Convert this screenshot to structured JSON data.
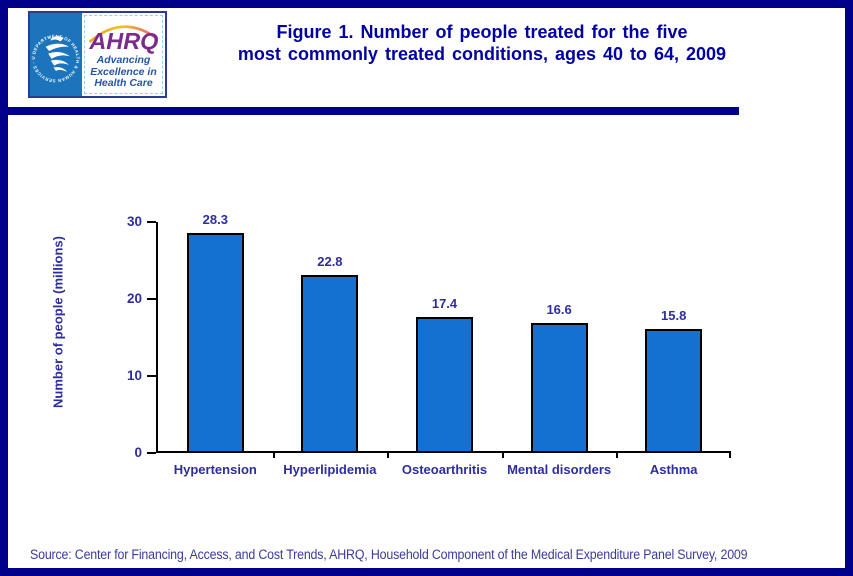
{
  "colors": {
    "frame_border": "#00008B",
    "divider": "#00008B",
    "title_text": "#0202A0",
    "chart_text": "#2D2DA0",
    "bar_fill": "#1471D2",
    "bar_border": "#000000",
    "hhs_blue": "#1B74BC",
    "ahrq_purple": "#7B2B8D",
    "tagline_blue": "#2456A8",
    "source_text": "#3B3B9E"
  },
  "header": {
    "logo": {
      "hhs_circular_text": "DEPARTMENT OF HEALTH & HUMAN SERVICES · USA",
      "ahrq_acronym": "AHRQ",
      "tagline_line1": "Advancing",
      "tagline_line2": "Excellence in",
      "tagline_line3": "Health Care"
    },
    "title_line1": "Figure 1. Number of people treated for the five",
    "title_line2": "most commonly treated conditions, ages 40 to 64, 2009"
  },
  "chart_data": {
    "type": "bar",
    "title": "Figure 1. Number of people treated for the five most commonly treated conditions, ages 40 to 64, 2009",
    "categories": [
      "Hypertension",
      "Hyperlipidemia",
      "Osteoarthritis",
      "Mental disorders",
      "Asthma"
    ],
    "values": [
      28.3,
      22.8,
      17.4,
      16.6,
      15.8
    ],
    "bar_labels": [
      "28.3",
      "22.8",
      "17.4",
      "16.6",
      "15.8"
    ],
    "xlabel": "",
    "ylabel": "Number of people (millions)",
    "ylim": [
      0,
      30
    ],
    "yticks": [
      0,
      10,
      20,
      30
    ],
    "grid": false,
    "legend": "none"
  },
  "footer": {
    "source": "Source: Center for Financing, Access, and Cost Trends, AHRQ,  Household Component of the Medical Expenditure Panel Survey,  2009"
  }
}
